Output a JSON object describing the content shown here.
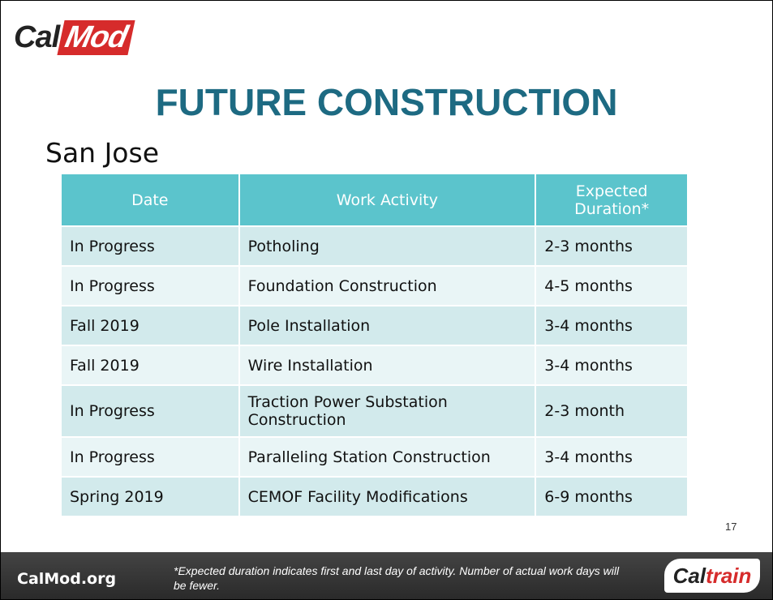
{
  "logo": {
    "part1": "Cal",
    "part2": "Mod"
  },
  "title": "FUTURE CONSTRUCTION",
  "subtitle": "San Jose",
  "table": {
    "header": [
      "Date",
      "Work Activity",
      "Expected Duration*"
    ],
    "rows": [
      [
        "In Progress",
        "Potholing",
        "2-3 months"
      ],
      [
        "In Progress",
        "Foundation Construction",
        "4-5 months"
      ],
      [
        "Fall 2019",
        "Pole Installation",
        "3-4 months"
      ],
      [
        "Fall 2019",
        "Wire Installation",
        "3-4 months"
      ],
      [
        "In Progress",
        "Traction Power Substation Construction",
        "2-3 month"
      ],
      [
        "In Progress",
        "Paralleling Station Construction",
        "3-4 months"
      ],
      [
        "Spring 2019",
        "CEMOF Facility Modifications",
        "6-9 months"
      ]
    ]
  },
  "page_number": "17",
  "footer": {
    "site": "CalMod.org",
    "note": "*Expected duration indicates first and last day of activity. Number of actual work days will be fewer.",
    "brand1": "Cal",
    "brand2": "train"
  }
}
